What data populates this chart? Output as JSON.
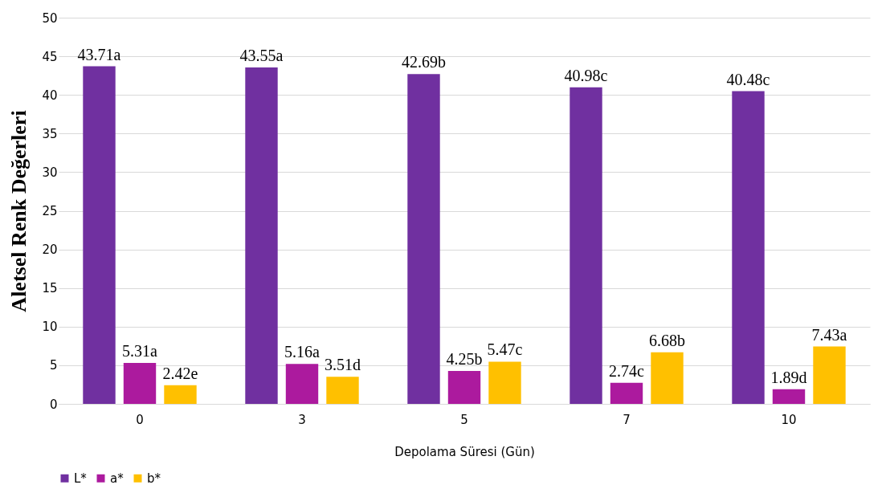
{
  "chart_data": {
    "type": "bar",
    "xlabel": "Depolama Süresi (Gün)",
    "ylabel": "Aletsel Renk Değerleri",
    "categories": [
      "0",
      "3",
      "5",
      "7",
      "10"
    ],
    "series": [
      {
        "name": "L*",
        "color": "#7030a0",
        "values": [
          43.71,
          43.55,
          42.69,
          40.98,
          40.48
        ],
        "value_labels": [
          "43.71a",
          "43.55a",
          "42.69b",
          "40.98c",
          "40.48c"
        ]
      },
      {
        "name": "a*",
        "color": "#ac1a9e",
        "values": [
          5.31,
          5.16,
          4.25,
          2.74,
          1.89
        ],
        "value_labels": [
          "5.31a",
          "5.16a",
          "4.25b",
          "2.74c",
          "1.89d"
        ]
      },
      {
        "name": "b*",
        "color": "#ffc000",
        "values": [
          2.42,
          3.51,
          5.47,
          6.68,
          7.43
        ],
        "value_labels": [
          "2.42e",
          "3.51d",
          "5.47c",
          "6.68b",
          "7.43a"
        ]
      }
    ],
    "ylim": [
      0,
      50
    ],
    "yticks": [
      0,
      5,
      10,
      15,
      20,
      25,
      30,
      35,
      40,
      45,
      50
    ],
    "grid": "y",
    "legend": "bottom"
  }
}
